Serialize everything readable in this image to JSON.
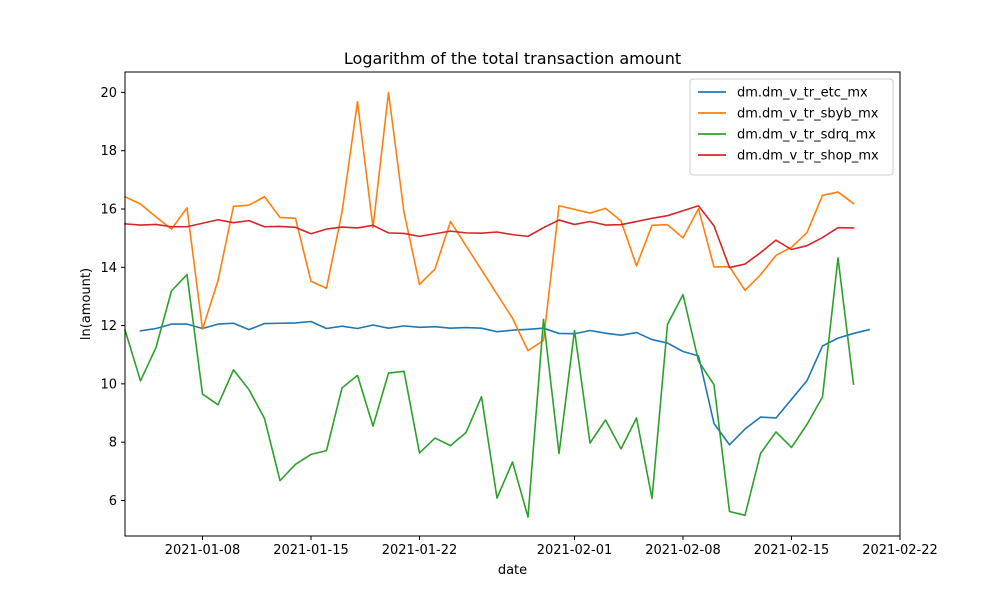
{
  "chart_data": {
    "type": "line",
    "title": "Logarithm of the total transaction amount",
    "xlabel": "date",
    "ylabel": "ln(amount)",
    "xlim": [
      "2021-01-03",
      "2021-02-22"
    ],
    "ylim": [
      4.78,
      20.7
    ],
    "x_ticks": [
      "2021-01-08",
      "2021-01-15",
      "2021-01-22",
      "2021-02-01",
      "2021-02-08",
      "2021-02-15",
      "2021-02-22"
    ],
    "y_ticks": [
      6,
      8,
      10,
      12,
      14,
      16,
      18,
      20
    ],
    "legend_position": "top-right",
    "grid": false,
    "series": [
      {
        "name": "dm.dm_v_tr_etc_mx",
        "color": "#1f77b4",
        "points": [
          [
            "2021-01-04",
            11.82
          ],
          [
            "2021-01-05",
            11.9
          ],
          [
            "2021-01-06",
            12.05
          ],
          [
            "2021-01-07",
            12.05
          ],
          [
            "2021-01-08",
            11.9
          ],
          [
            "2021-01-09",
            12.05
          ],
          [
            "2021-01-10",
            12.08
          ],
          [
            "2021-01-11",
            11.86
          ],
          [
            "2021-01-12",
            12.07
          ],
          [
            "2021-01-13",
            12.08
          ],
          [
            "2021-01-14",
            12.09
          ],
          [
            "2021-01-15",
            12.14
          ],
          [
            "2021-01-16",
            11.9
          ],
          [
            "2021-01-17",
            11.98
          ],
          [
            "2021-01-18",
            11.9
          ],
          [
            "2021-01-19",
            12.02
          ],
          [
            "2021-01-20",
            11.91
          ],
          [
            "2021-01-21",
            11.99
          ],
          [
            "2021-01-22",
            11.94
          ],
          [
            "2021-01-23",
            11.96
          ],
          [
            "2021-01-24",
            11.91
          ],
          [
            "2021-01-25",
            11.93
          ],
          [
            "2021-01-26",
            11.91
          ],
          [
            "2021-01-27",
            11.79
          ],
          [
            "2021-01-28",
            11.84
          ],
          [
            "2021-01-29",
            11.87
          ],
          [
            "2021-01-30",
            11.91
          ],
          [
            "2021-01-31",
            11.73
          ],
          [
            "2021-02-01",
            11.72
          ],
          [
            "2021-02-02",
            11.83
          ],
          [
            "2021-02-03",
            11.74
          ],
          [
            "2021-02-04",
            11.67
          ],
          [
            "2021-02-05",
            11.76
          ],
          [
            "2021-02-06",
            11.52
          ],
          [
            "2021-02-07",
            11.4
          ],
          [
            "2021-02-08",
            11.11
          ],
          [
            "2021-02-09",
            10.96
          ],
          [
            "2021-02-10",
            8.64
          ],
          [
            "2021-02-11",
            7.91
          ],
          [
            "2021-02-12",
            8.45
          ],
          [
            "2021-02-13",
            8.86
          ],
          [
            "2021-02-14",
            8.83
          ],
          [
            "2021-02-15",
            9.47
          ],
          [
            "2021-02-16",
            10.11
          ],
          [
            "2021-02-17",
            11.3
          ],
          [
            "2021-02-18",
            11.57
          ],
          [
            "2021-02-19",
            11.73
          ],
          [
            "2021-02-20",
            11.86
          ]
        ]
      },
      {
        "name": "dm.dm_v_tr_sbyb_mx",
        "color": "#ff7f0e",
        "points": [
          [
            "2021-01-03",
            16.42
          ],
          [
            "2021-01-04",
            16.17
          ],
          [
            "2021-01-05",
            15.73
          ],
          [
            "2021-01-06",
            15.31
          ],
          [
            "2021-01-07",
            16.04
          ],
          [
            "2021-01-08",
            11.88
          ],
          [
            "2021-01-09",
            13.54
          ],
          [
            "2021-01-10",
            16.09
          ],
          [
            "2021-01-11",
            16.13
          ],
          [
            "2021-01-12",
            16.42
          ],
          [
            "2021-01-13",
            15.71
          ],
          [
            "2021-01-14",
            15.68
          ],
          [
            "2021-01-15",
            13.52
          ],
          [
            "2021-01-16",
            13.28
          ],
          [
            "2021-01-17",
            15.89
          ],
          [
            "2021-01-18",
            19.68
          ],
          [
            "2021-01-19",
            15.36
          ],
          [
            "2021-01-20",
            20.0
          ],
          [
            "2021-01-21",
            15.89
          ],
          [
            "2021-01-22",
            13.41
          ],
          [
            "2021-01-23",
            13.94
          ],
          [
            "2021-01-24",
            15.57
          ],
          [
            "2021-01-28",
            12.25
          ],
          [
            "2021-01-29",
            11.14
          ],
          [
            "2021-01-30",
            11.49
          ],
          [
            "2021-01-31",
            16.11
          ],
          [
            "2021-02-02",
            15.86
          ],
          [
            "2021-02-03",
            16.02
          ],
          [
            "2021-02-04",
            15.59
          ],
          [
            "2021-02-05",
            14.05
          ],
          [
            "2021-02-06",
            15.44
          ],
          [
            "2021-02-07",
            15.46
          ],
          [
            "2021-02-08",
            15.01
          ],
          [
            "2021-02-09",
            16.01
          ],
          [
            "2021-02-10",
            14.01
          ],
          [
            "2021-02-11",
            14.02
          ],
          [
            "2021-02-12",
            13.21
          ],
          [
            "2021-02-13",
            13.74
          ],
          [
            "2021-02-14",
            14.41
          ],
          [
            "2021-02-15",
            14.69
          ],
          [
            "2021-02-16",
            15.19
          ],
          [
            "2021-02-17",
            16.47
          ],
          [
            "2021-02-18",
            16.58
          ],
          [
            "2021-02-19",
            16.19
          ]
        ]
      },
      {
        "name": "dm.dm_v_tr_sdrq_mx",
        "color": "#2ca02c",
        "points": [
          [
            "2021-01-03",
            11.85
          ],
          [
            "2021-01-04",
            10.1
          ],
          [
            "2021-01-05",
            11.25
          ],
          [
            "2021-01-06",
            13.19
          ],
          [
            "2021-01-07",
            13.75
          ],
          [
            "2021-01-08",
            9.65
          ],
          [
            "2021-01-09",
            9.28
          ],
          [
            "2021-01-10",
            10.48
          ],
          [
            "2021-01-11",
            9.8
          ],
          [
            "2021-01-12",
            8.81
          ],
          [
            "2021-01-13",
            6.68
          ],
          [
            "2021-01-14",
            7.24
          ],
          [
            "2021-01-15",
            7.58
          ],
          [
            "2021-01-16",
            7.71
          ],
          [
            "2021-01-17",
            9.86
          ],
          [
            "2021-01-18",
            10.29
          ],
          [
            "2021-01-19",
            8.55
          ],
          [
            "2021-01-20",
            10.37
          ],
          [
            "2021-01-21",
            10.43
          ],
          [
            "2021-01-22",
            7.63
          ],
          [
            "2021-01-23",
            8.14
          ],
          [
            "2021-01-24",
            7.88
          ],
          [
            "2021-01-25",
            8.33
          ],
          [
            "2021-01-26",
            9.56
          ],
          [
            "2021-01-27",
            6.08
          ],
          [
            "2021-01-28",
            7.32
          ],
          [
            "2021-01-29",
            5.43
          ],
          [
            "2021-01-30",
            12.21
          ],
          [
            "2021-01-31",
            7.61
          ],
          [
            "2021-02-01",
            11.83
          ],
          [
            "2021-02-02",
            7.97
          ],
          [
            "2021-02-03",
            8.76
          ],
          [
            "2021-02-04",
            7.77
          ],
          [
            "2021-02-05",
            8.83
          ],
          [
            "2021-02-06",
            6.07
          ],
          [
            "2021-02-07",
            12.04
          ],
          [
            "2021-02-08",
            13.06
          ],
          [
            "2021-02-09",
            10.78
          ],
          [
            "2021-02-10",
            9.97
          ],
          [
            "2021-02-11",
            5.62
          ],
          [
            "2021-02-12",
            5.49
          ],
          [
            "2021-02-13",
            7.61
          ],
          [
            "2021-02-14",
            8.35
          ],
          [
            "2021-02-15",
            7.82
          ],
          [
            "2021-02-16",
            8.61
          ],
          [
            "2021-02-17",
            9.55
          ],
          [
            "2021-02-18",
            14.32
          ],
          [
            "2021-02-19",
            9.99
          ]
        ]
      },
      {
        "name": "dm.dm_v_tr_shop_mx",
        "color": "#d62728",
        "points": [
          [
            "2021-01-03",
            15.49
          ],
          [
            "2021-01-04",
            15.45
          ],
          [
            "2021-01-05",
            15.47
          ],
          [
            "2021-01-06",
            15.39
          ],
          [
            "2021-01-07",
            15.39
          ],
          [
            "2021-01-08",
            15.51
          ],
          [
            "2021-01-09",
            15.63
          ],
          [
            "2021-01-10",
            15.53
          ],
          [
            "2021-01-11",
            15.6
          ],
          [
            "2021-01-12",
            15.39
          ],
          [
            "2021-01-13",
            15.4
          ],
          [
            "2021-01-14",
            15.37
          ],
          [
            "2021-01-15",
            15.15
          ],
          [
            "2021-01-16",
            15.31
          ],
          [
            "2021-01-17",
            15.38
          ],
          [
            "2021-01-18",
            15.35
          ],
          [
            "2021-01-19",
            15.44
          ],
          [
            "2021-01-20",
            15.18
          ],
          [
            "2021-01-21",
            15.16
          ],
          [
            "2021-01-22",
            15.06
          ],
          [
            "2021-01-23",
            15.15
          ],
          [
            "2021-01-24",
            15.24
          ],
          [
            "2021-01-25",
            15.18
          ],
          [
            "2021-01-26",
            15.17
          ],
          [
            "2021-01-27",
            15.21
          ],
          [
            "2021-01-28",
            15.12
          ],
          [
            "2021-01-29",
            15.06
          ],
          [
            "2021-01-30",
            15.36
          ],
          [
            "2021-01-31",
            15.62
          ],
          [
            "2021-02-01",
            15.47
          ],
          [
            "2021-02-02",
            15.57
          ],
          [
            "2021-02-03",
            15.45
          ],
          [
            "2021-02-04",
            15.46
          ],
          [
            "2021-02-05",
            15.57
          ],
          [
            "2021-02-06",
            15.68
          ],
          [
            "2021-02-07",
            15.77
          ],
          [
            "2021-02-08",
            15.94
          ],
          [
            "2021-02-09",
            16.11
          ],
          [
            "2021-02-10",
            15.42
          ],
          [
            "2021-02-11",
            13.99
          ],
          [
            "2021-02-12",
            14.11
          ],
          [
            "2021-02-13",
            14.5
          ],
          [
            "2021-02-14",
            14.93
          ],
          [
            "2021-02-15",
            14.61
          ],
          [
            "2021-02-16",
            14.74
          ],
          [
            "2021-02-17",
            15.02
          ],
          [
            "2021-02-18",
            15.36
          ],
          [
            "2021-02-19",
            15.35
          ]
        ]
      }
    ]
  }
}
